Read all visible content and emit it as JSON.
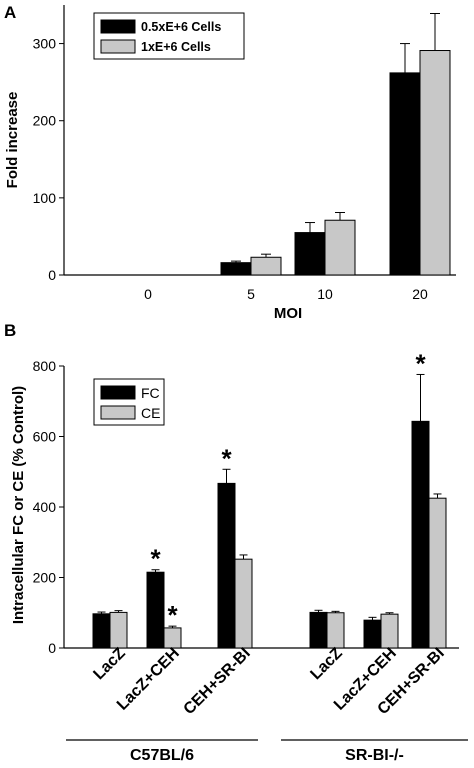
{
  "chart_data": [
    {
      "panel": "A",
      "type": "bar",
      "ylabel": "Fold increase",
      "xlabel": "MOI",
      "categories": [
        "0",
        "5",
        "10",
        "20"
      ],
      "ylim": [
        0,
        350
      ],
      "yticks": [
        0,
        100,
        200,
        300
      ],
      "legend_position": "top-left",
      "grid": false,
      "series": [
        {
          "name": "0.5xE+6 Cells",
          "color": "#000000",
          "values": [
            0,
            16,
            55,
            262
          ],
          "errors": [
            0,
            2,
            13,
            38
          ]
        },
        {
          "name": "1xE+6 Cells",
          "color": "#c8c8c8",
          "values": [
            0,
            23,
            71,
            291
          ],
          "errors": [
            0,
            4,
            10,
            48
          ]
        }
      ]
    },
    {
      "panel": "B",
      "type": "bar",
      "ylabel": "Intracellular FC or CE (% Control)",
      "categories": [
        "LacZ",
        "LacZ+CEH",
        "CEH+SR-BI",
        "LacZ",
        "LacZ+CEH",
        "CEH+SR-BI"
      ],
      "groups": [
        {
          "label": "C57BL/6",
          "categories": [
            "LacZ",
            "LacZ+CEH",
            "CEH+SR-BI"
          ]
        },
        {
          "label": "SR-BI-/-",
          "categories": [
            "LacZ",
            "LacZ+CEH",
            "CEH+SR-BI"
          ]
        }
      ],
      "ylim": [
        0,
        800
      ],
      "yticks": [
        0,
        200,
        400,
        600,
        800
      ],
      "legend_position": "top-left",
      "grid": false,
      "series": [
        {
          "name": "FC",
          "color": "#000000",
          "values": [
            97,
            215,
            467,
            101,
            79,
            643
          ],
          "errors": [
            5,
            7,
            40,
            6,
            8,
            133
          ],
          "significant": [
            false,
            true,
            true,
            false,
            false,
            true
          ]
        },
        {
          "name": "CE",
          "color": "#c8c8c8",
          "values": [
            101,
            57,
            252,
            100,
            96,
            425
          ],
          "errors": [
            5,
            5,
            12,
            4,
            4,
            12
          ],
          "significant": [
            false,
            true,
            false,
            false,
            false,
            false
          ]
        }
      ],
      "significance_marker": "*"
    }
  ],
  "panel_letters": [
    "A",
    "B"
  ]
}
